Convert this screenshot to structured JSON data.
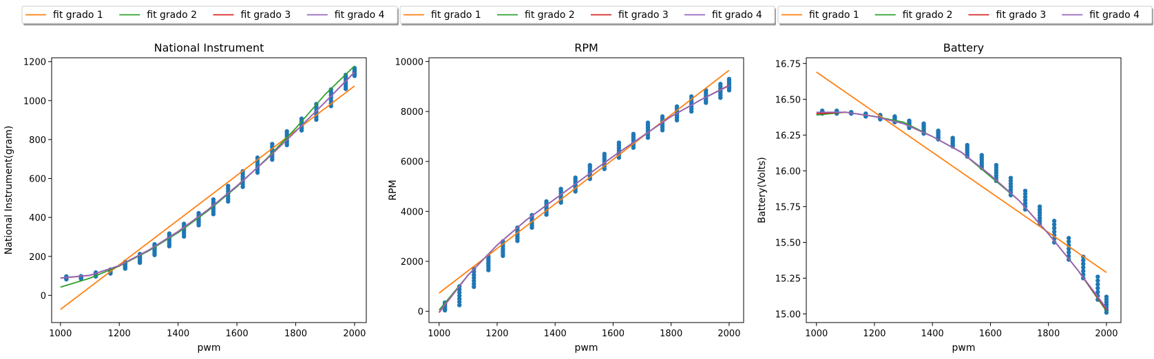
{
  "chart_data": [
    {
      "type": "line",
      "title": "National Instrument",
      "xlabel": "pwm",
      "ylabel": "National Instrument(gram)",
      "xlim": [
        970,
        2040
      ],
      "ylim": [
        -140,
        1220
      ],
      "xticks": [
        1000,
        1200,
        1400,
        1600,
        1800,
        2000
      ],
      "yticks": [
        0,
        200,
        400,
        600,
        800,
        1000,
        1200
      ],
      "ytick_labels": [
        "0",
        "200",
        "400",
        "600",
        "800",
        "1000",
        "1200"
      ],
      "grid": false,
      "legend_placement": "above",
      "scatter": {
        "color": "#1f77b4",
        "x": [
          1020,
          1070,
          1120,
          1170,
          1220,
          1270,
          1320,
          1370,
          1420,
          1470,
          1520,
          1570,
          1620,
          1670,
          1720,
          1770,
          1820,
          1870,
          1920,
          1970,
          2000
        ],
        "y_min": [
          82,
          85,
          97,
          112,
          137,
          167,
          207,
          252,
          302,
          360,
          417,
          482,
          557,
          630,
          697,
          772,
          847,
          902,
          972,
          1060,
          1127
        ],
        "y_max": [
          97,
          98,
          117,
          132,
          172,
          212,
          262,
          317,
          367,
          422,
          492,
          562,
          637,
          707,
          777,
          842,
          907,
          982,
          1057,
          1132,
          1167
        ]
      },
      "series": [
        {
          "name": "fit grado 1",
          "color": "#ff7f0e",
          "x": [
            1000,
            2000
          ],
          "y": [
            -73,
            1075
          ]
        },
        {
          "name": "fit grado 2",
          "color": "#2ca02c",
          "x": [
            1000,
            1100,
            1200,
            1300,
            1400,
            1500,
            1600,
            1700,
            1800,
            1900,
            2000
          ],
          "y": [
            42,
            88,
            150,
            228,
            322,
            432,
            558,
            700,
            858,
            1032,
            1178
          ]
        },
        {
          "name": "fit grado 3",
          "color": "#d62728",
          "x": [
            1000,
            1100,
            1200,
            1300,
            1400,
            1500,
            1600,
            1700,
            1800,
            1900,
            2000
          ],
          "y": [
            88,
            102,
            152,
            232,
            328,
            438,
            562,
            697,
            842,
            992,
            1147
          ]
        },
        {
          "name": "fit grado 4",
          "color": "#9467bd",
          "x": [
            1000,
            1100,
            1200,
            1300,
            1400,
            1500,
            1600,
            1700,
            1800,
            1900,
            2000
          ],
          "y": [
            89,
            103,
            153,
            232,
            327,
            438,
            562,
            697,
            842,
            992,
            1145
          ]
        }
      ]
    },
    {
      "type": "line",
      "title": "RPM",
      "xlabel": "pwm",
      "ylabel": "RPM",
      "xlim": [
        965,
        2050
      ],
      "ylim": [
        -450,
        10150
      ],
      "xticks": [
        1000,
        1200,
        1400,
        1600,
        1800,
        2000
      ],
      "yticks": [
        0,
        2000,
        4000,
        6000,
        8000,
        10000
      ],
      "ytick_labels": [
        "0",
        "2000",
        "4000",
        "6000",
        "8000",
        "10000"
      ],
      "grid": false,
      "legend_placement": "above",
      "scatter": {
        "color": "#1f77b4",
        "x": [
          1020,
          1070,
          1120,
          1170,
          1220,
          1270,
          1320,
          1370,
          1420,
          1470,
          1520,
          1570,
          1620,
          1670,
          1720,
          1770,
          1820,
          1870,
          1920,
          1970,
          2000
        ],
        "y_min": [
          40,
          250,
          980,
          1650,
          2220,
          2820,
          3350,
          3870,
          4350,
          4800,
          5300,
          5700,
          6150,
          6550,
          6950,
          7250,
          7650,
          8000,
          8350,
          8550,
          8850
        ],
        "y_max": [
          350,
          1000,
          1700,
          2200,
          2800,
          3350,
          3850,
          4400,
          4900,
          5350,
          5850,
          6300,
          6750,
          7100,
          7550,
          7800,
          8200,
          8600,
          8850,
          9100,
          9300
        ]
      },
      "series": [
        {
          "name": "fit grado 1",
          "color": "#ff7f0e",
          "x": [
            1000,
            2000
          ],
          "y": [
            730,
            9650
          ]
        },
        {
          "name": "fit grado 2",
          "color": "#2ca02c",
          "x": [
            1000,
            1100,
            1200,
            1300,
            1400,
            1500,
            1600,
            1700,
            1800,
            1900,
            2000
          ],
          "y": [
            50,
            1450,
            2650,
            3650,
            4500,
            5350,
            6200,
            7000,
            7800,
            8450,
            9050
          ]
        },
        {
          "name": "fit grado 3",
          "color": "#d62728",
          "x": [
            1000,
            1100,
            1200,
            1300,
            1400,
            1500,
            1600,
            1700,
            1800,
            1900,
            2000
          ],
          "y": [
            -50,
            1450,
            2650,
            3650,
            4500,
            5350,
            6200,
            7000,
            7800,
            8450,
            9050
          ]
        },
        {
          "name": "fit grado 4",
          "color": "#9467bd",
          "x": [
            1000,
            1100,
            1200,
            1300,
            1400,
            1500,
            1600,
            1700,
            1800,
            1900,
            2000
          ],
          "y": [
            -30,
            1450,
            2650,
            3650,
            4500,
            5350,
            6200,
            7000,
            7800,
            8450,
            9030
          ]
        }
      ]
    },
    {
      "type": "line",
      "title": "Battery",
      "xlabel": "pwm",
      "ylabel": "Battery(Volts)",
      "xlim": [
        965,
        2050
      ],
      "ylim": [
        14.94,
        16.79
      ],
      "xticks": [
        1000,
        1200,
        1400,
        1600,
        1800,
        2000
      ],
      "yticks": [
        15.0,
        15.25,
        15.5,
        15.75,
        16.0,
        16.25,
        16.5,
        16.75
      ],
      "ytick_labels": [
        "15.00",
        "15.25",
        "15.50",
        "15.75",
        "16.00",
        "16.25",
        "16.50",
        "16.75"
      ],
      "grid": false,
      "legend_placement": "above",
      "scatter": {
        "color": "#1f77b4",
        "x": [
          1020,
          1070,
          1120,
          1170,
          1220,
          1270,
          1320,
          1370,
          1420,
          1470,
          1520,
          1570,
          1620,
          1670,
          1720,
          1770,
          1820,
          1870,
          1920,
          1970,
          2000
        ],
        "y_min": [
          16.4,
          16.4,
          16.4,
          16.38,
          16.36,
          16.34,
          16.3,
          16.26,
          16.22,
          16.17,
          16.1,
          16.02,
          15.93,
          15.83,
          15.73,
          15.63,
          15.5,
          15.38,
          15.25,
          15.1,
          15.01
        ],
        "y_max": [
          16.42,
          16.42,
          16.41,
          16.4,
          16.39,
          16.38,
          16.35,
          16.33,
          16.28,
          16.23,
          16.18,
          16.11,
          16.04,
          15.95,
          15.86,
          15.75,
          15.65,
          15.53,
          15.4,
          15.26,
          15.12
        ]
      },
      "series": [
        {
          "name": "fit grado 1",
          "color": "#ff7f0e",
          "x": [
            1000,
            2000
          ],
          "y": [
            16.69,
            15.29
          ]
        },
        {
          "name": "fit grado 2",
          "color": "#2ca02c",
          "x": [
            1000,
            1100,
            1200,
            1300,
            1400,
            1500,
            1600,
            1700,
            1800,
            1900,
            2000
          ],
          "y": [
            16.39,
            16.41,
            16.38,
            16.34,
            16.24,
            16.13,
            15.96,
            15.79,
            15.56,
            15.31,
            15.02
          ]
        },
        {
          "name": "fit grado 3",
          "color": "#d62728",
          "x": [
            1000,
            1100,
            1200,
            1300,
            1400,
            1500,
            1600,
            1700,
            1800,
            1900,
            2000
          ],
          "y": [
            16.4,
            16.41,
            16.38,
            16.33,
            16.24,
            16.13,
            15.97,
            15.79,
            15.56,
            15.31,
            15.03
          ]
        },
        {
          "name": "fit grado 4",
          "color": "#9467bd",
          "x": [
            1000,
            1100,
            1200,
            1300,
            1400,
            1500,
            1600,
            1700,
            1800,
            1900,
            2000
          ],
          "y": [
            16.41,
            16.41,
            16.38,
            16.33,
            16.24,
            16.13,
            15.97,
            15.79,
            15.56,
            15.31,
            15.04
          ]
        }
      ]
    }
  ]
}
